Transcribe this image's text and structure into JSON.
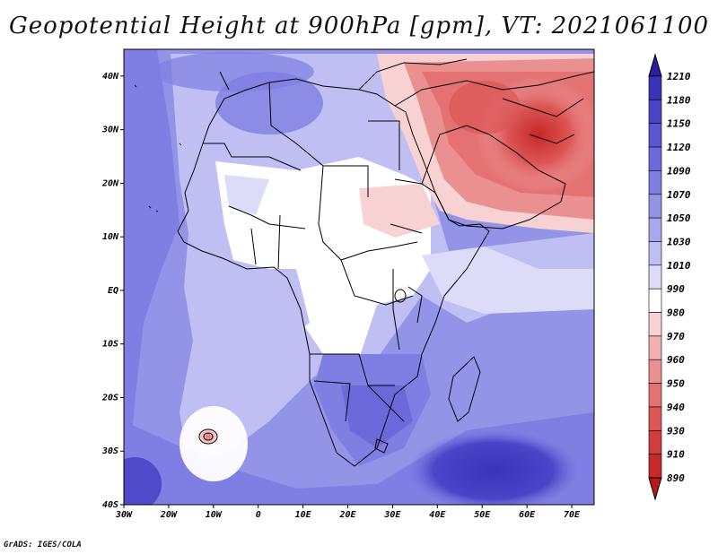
{
  "title": "Geopotential Height at 900hPa [gpm], VT: 2021061100",
  "credit": "GrADS: IGES/COLA",
  "map": {
    "lon_range": [
      -30,
      75
    ],
    "lat_range": [
      -40,
      45
    ],
    "lon_ticks": [
      "30W",
      "20W",
      "10W",
      "0",
      "10E",
      "20E",
      "30E",
      "40E",
      "50E",
      "60E",
      "70E"
    ],
    "lat_ticks": [
      "40N",
      "30N",
      "20N",
      "10N",
      "EQ",
      "10S",
      "20S",
      "30S",
      "40S"
    ]
  },
  "colorbar": {
    "labels": [
      "1210",
      "1180",
      "1150",
      "1120",
      "1090",
      "1070",
      "1050",
      "1030",
      "1010",
      "990",
      "980",
      "970",
      "960",
      "950",
      "940",
      "930",
      "910",
      "890"
    ],
    "colors": [
      "#2a1f9c",
      "#3a33b8",
      "#4a45c8",
      "#5a57d2",
      "#6c6adb",
      "#7f7ee2",
      "#9393e8",
      "#a8a8ee",
      "#bfbff3",
      "#dcdcf9",
      "#ffffff",
      "#f8d2d2",
      "#f2b0b0",
      "#eb9090",
      "#e47272",
      "#dc5656",
      "#d23c3c",
      "#c72828",
      "#b81818"
    ]
  }
}
